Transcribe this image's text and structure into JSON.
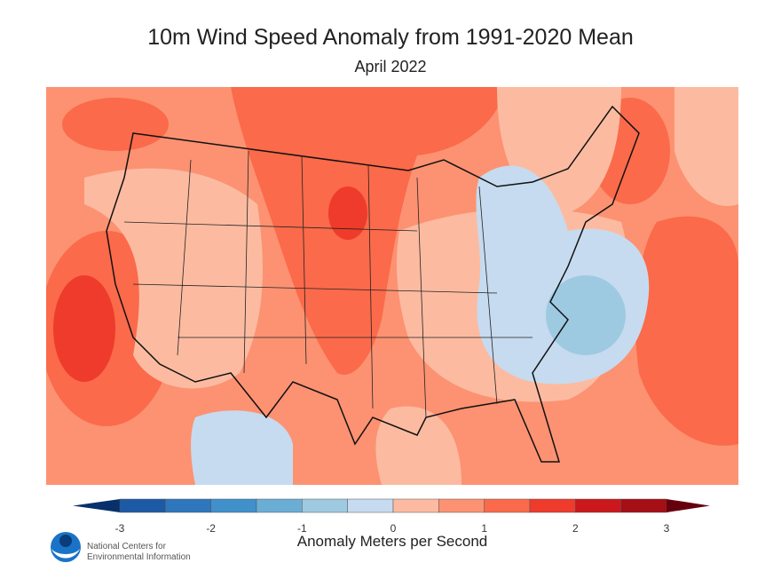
{
  "title": "10m Wind Speed Anomaly from 1991-2020 Mean",
  "subtitle": "April 2022",
  "map": {
    "region": "Contiguous United States",
    "variable": "10m wind speed anomaly",
    "colors": {
      "strong_positive": "#ef3b2c",
      "moderate_positive": "#fb6a4a",
      "positive": "#fc9272",
      "slight_positive": "#fcbba1",
      "slight_negative": "#c6dbef",
      "negative": "#9ecae1"
    }
  },
  "colorbar": {
    "label": "Anomaly Meters per Second",
    "ticks": [
      "-3",
      "-2",
      "-1",
      "0",
      "1",
      "2",
      "3"
    ],
    "colors": [
      "#08306b",
      "#1c5aa5",
      "#2e77bd",
      "#4090cb",
      "#6aaed6",
      "#9ecae1",
      "#c6dbef",
      "#fcbba1",
      "#fc9272",
      "#fb6a4a",
      "#ef3b2c",
      "#cb181d",
      "#a50f15",
      "#67000d"
    ]
  },
  "footer": {
    "org_line1": "National Centers for",
    "org_line2": "Environmental Information",
    "logo_text": "NOAA"
  }
}
